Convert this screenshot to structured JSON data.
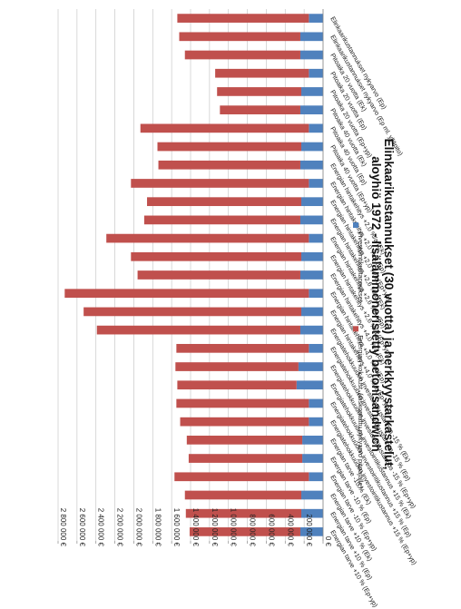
{
  "chart_data": {
    "type": "bar",
    "stacked": true,
    "orientation": "horizontal",
    "title": "Elinkaarikustannukset (30 vuotta) ja herkkyystarkastelut, aloyhiö 1972 - lisälämmöneristetty betonisandwich",
    "legend_position": "top",
    "grid": true,
    "xlim": [
      0,
      2800000
    ],
    "tick_values": [
      0,
      200000,
      400000,
      600000,
      800000,
      1000000,
      1200000,
      1400000,
      1600000,
      1800000,
      2000000,
      2200000,
      2400000,
      2600000,
      2800000
    ],
    "tick_labels": [
      "0 €",
      "200 000 €",
      "400 000 €",
      "600 000 €",
      "800 000 €",
      "1 000 000 €",
      "1 200 000 €",
      "1 400 000 €",
      "1 600 000 €",
      "1 800 000 €",
      "2 000 000 €",
      "2 200 000 €",
      "2 400 000 €",
      "2 600 000 €",
      "2 800 000 €"
    ],
    "categories": [
      "Elinkaarikustannukset nykyarvo (Ep)",
      "Elinkaarikustannukset nykyarvo (Ep ml. ylläpito)",
      "Pitoaika 20 vuotta (Ek)",
      "Pitoaika 20 vuotta (Ep)",
      "Pitoaika 20 vuotta (Ep+yp)",
      "Pitoaika 40 vuotta (Ek)",
      "Pitoaika 40 vuotta (Ep)",
      "Pitoaika 40 vuotta (Ep+yp)",
      "Energian hintakehitys +2,0 %/a (Ek)",
      "Energian hintakehitys +2,0 %/a (Ep)",
      "Energian hintakehitys +2,0 %/a (Ep+yp)",
      "Energian hintakehitys +2,6 %/a (Ek)",
      "Energian hintakehitys +2,6 %/a (Ep)",
      "Energian hintakehitys +2,6 %/a (Ep+yp)",
      "Energian hintakehitys +4,0 %/a (Ek)",
      "Energian hintakehitys +4,0 %/a (Ep)",
      "Energian hintakehitys +4,0 %/a (Ep+yp)",
      "Energiatehokkuuden investointikustannus -15 % (Ek)",
      "Energiatehokkuuden investointikustannus -15 % (Ep)",
      "Energiatehokkuuden investointikustannus -15 % (Ep+yp)",
      "Energiatehokkuuden investointikustannus +15 % (Ek)",
      "Energiatehokkuuden investointikustannus +15 % (Ep)",
      "Energiatehokkuuden investointikustannus +15 % (Ep+yp)",
      "Energian tarve -10 % (Ek)",
      "Energian tarve -10 % (Ep)",
      "Energian tarve -10 % (Ep+yp)",
      "Energian tarve +10 % (Ek)",
      "Energian tarve +10 % (Ep)",
      "Energian tarve +10 % (Ep+yp)"
    ],
    "series": [
      {
        "name": "Investointikustannukset",
        "color": "#4f81bd",
        "values": [
          150000,
          240000,
          240000,
          150000,
          230000,
          240000,
          150000,
          230000,
          240000,
          150000,
          230000,
          240000,
          150000,
          230000,
          240000,
          150000,
          230000,
          240000,
          150000,
          260000,
          280000,
          150000,
          150000,
          220000,
          220000,
          150000,
          230000,
          230000,
          240000
        ]
      },
      {
        "name": "Energian kok.kust. (diskontattu nykyarvo pitoajalle)",
        "color": "#c0504d",
        "values": [
          1390000,
          1280000,
          1220000,
          990000,
          890000,
          850000,
          1780000,
          1520000,
          1500000,
          1880000,
          1630000,
          1650000,
          2140000,
          1800000,
          1720000,
          2580000,
          2300000,
          2150000,
          1400000,
          1300000,
          1260000,
          1400000,
          1360000,
          1220000,
          1200000,
          1420000,
          1230000,
          1220000,
          1170000
        ]
      }
    ]
  }
}
